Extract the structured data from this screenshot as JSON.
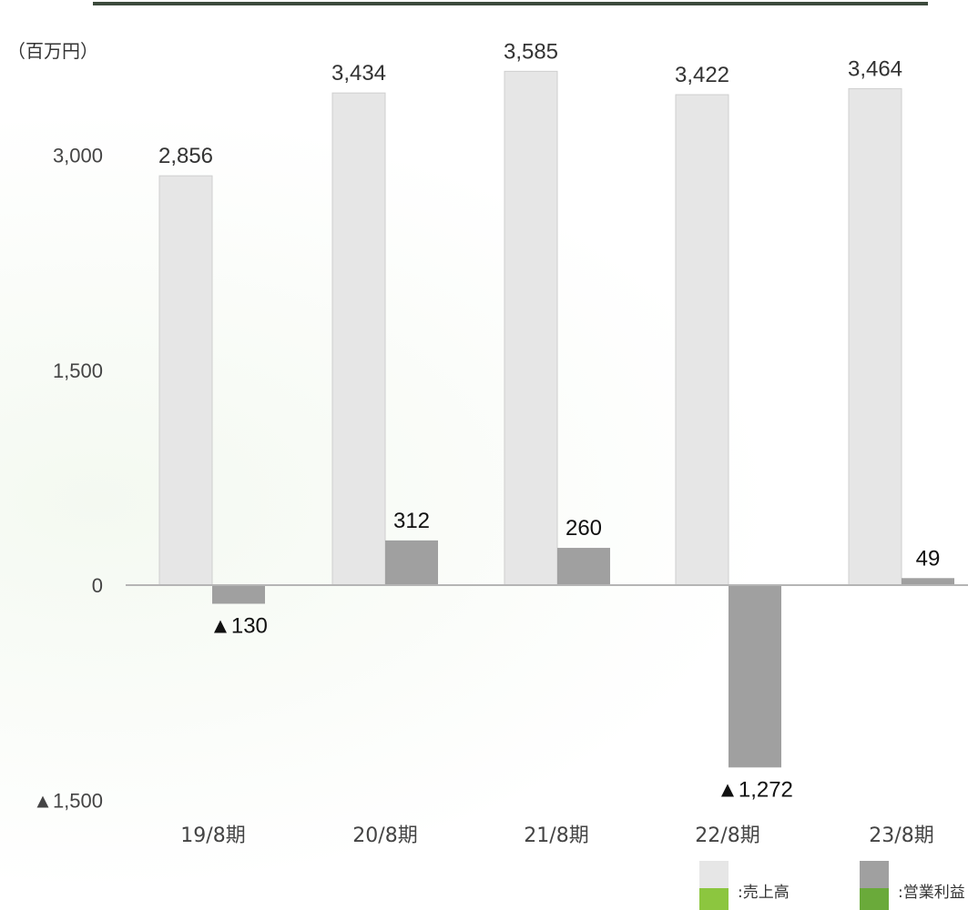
{
  "chart_data": {
    "type": "bar",
    "unit_label": "（百万円）",
    "categories": [
      "19/8期",
      "20/8期",
      "21/8期",
      "22/8期",
      "23/8期"
    ],
    "series": [
      {
        "name": "売上高",
        "values": [
          2856,
          3434,
          3585,
          3422,
          3464
        ],
        "labels": [
          "2,856",
          "3,434",
          "3,585",
          "3,422",
          "3,464"
        ],
        "color": "#e6e6e6",
        "legend_accent": "#8cc63f"
      },
      {
        "name": "営業利益",
        "values": [
          -130,
          312,
          260,
          -1272,
          49
        ],
        "labels": [
          "▲130",
          "312",
          "260",
          "▲1,272",
          "49"
        ],
        "color": "#a0a0a0",
        "legend_accent": "#6aaa3a"
      }
    ],
    "yticks": [
      {
        "value": 3000,
        "label": "3,000"
      },
      {
        "value": 1500,
        "label": "1,500"
      },
      {
        "value": 0,
        "label": "0"
      },
      {
        "value": -1500,
        "label": "▲1,500"
      }
    ],
    "ylim": [
      -1500,
      3585
    ],
    "grid": false,
    "legend": {
      "position": "bottom-right",
      "items": [
        ":売上高",
        ":営業利益"
      ]
    }
  }
}
